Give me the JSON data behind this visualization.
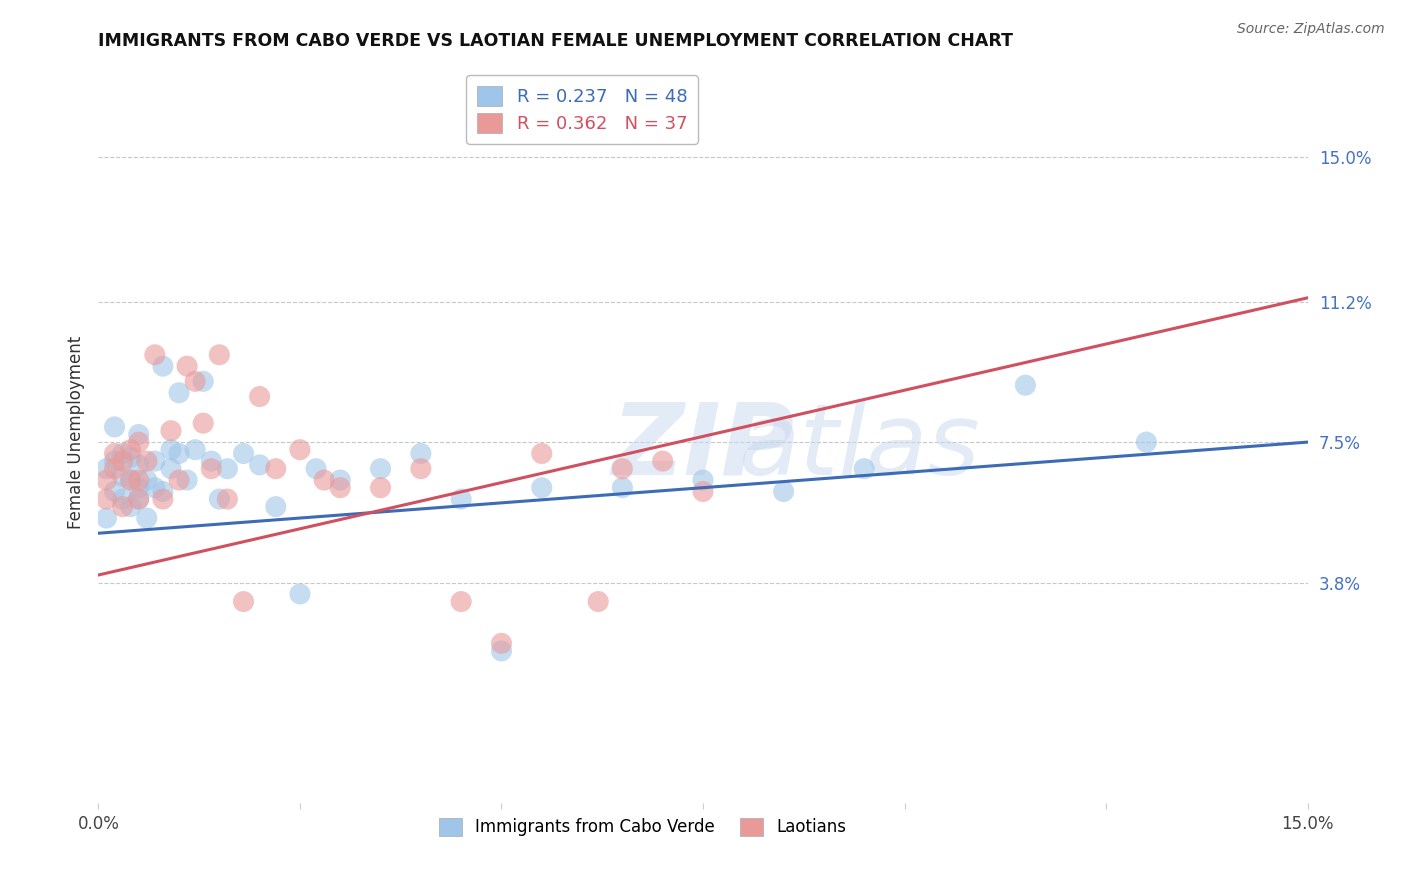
{
  "title": "IMMIGRANTS FROM CABO VERDE VS LAOTIAN FEMALE UNEMPLOYMENT CORRELATION CHART",
  "source": "Source: ZipAtlas.com",
  "ylabel": "Female Unemployment",
  "ytick_labels": [
    "15.0%",
    "11.2%",
    "7.5%",
    "3.8%"
  ],
  "ytick_values": [
    0.15,
    0.112,
    0.075,
    0.038
  ],
  "xlim": [
    0.0,
    0.15
  ],
  "ylim": [
    -0.02,
    0.175
  ],
  "legend1_R": "0.237",
  "legend1_N": "48",
  "legend2_R": "0.362",
  "legend2_N": "37",
  "color_blue": "#9fc5e8",
  "color_pink": "#ea9999",
  "line_blue": "#3d6bb5",
  "line_pink": "#d05060",
  "cabo_verde_x": [
    0.001,
    0.001,
    0.002,
    0.002,
    0.002,
    0.003,
    0.003,
    0.003,
    0.004,
    0.004,
    0.004,
    0.005,
    0.005,
    0.005,
    0.005,
    0.006,
    0.006,
    0.007,
    0.007,
    0.008,
    0.008,
    0.009,
    0.009,
    0.01,
    0.01,
    0.011,
    0.012,
    0.013,
    0.014,
    0.015,
    0.016,
    0.018,
    0.02,
    0.022,
    0.025,
    0.027,
    0.03,
    0.035,
    0.04,
    0.045,
    0.05,
    0.055,
    0.065,
    0.075,
    0.085,
    0.095,
    0.115,
    0.13
  ],
  "cabo_verde_y": [
    0.055,
    0.068,
    0.062,
    0.07,
    0.079,
    0.066,
    0.072,
    0.06,
    0.058,
    0.071,
    0.065,
    0.063,
    0.069,
    0.077,
    0.06,
    0.065,
    0.055,
    0.07,
    0.063,
    0.095,
    0.062,
    0.073,
    0.068,
    0.088,
    0.072,
    0.065,
    0.073,
    0.091,
    0.07,
    0.06,
    0.068,
    0.072,
    0.069,
    0.058,
    0.035,
    0.068,
    0.065,
    0.068,
    0.072,
    0.06,
    0.02,
    0.063,
    0.063,
    0.065,
    0.062,
    0.068,
    0.09,
    0.075
  ],
  "laotian_x": [
    0.001,
    0.001,
    0.002,
    0.002,
    0.003,
    0.003,
    0.004,
    0.004,
    0.005,
    0.005,
    0.005,
    0.006,
    0.007,
    0.008,
    0.009,
    0.01,
    0.011,
    0.012,
    0.013,
    0.014,
    0.015,
    0.016,
    0.018,
    0.02,
    0.022,
    0.025,
    0.028,
    0.03,
    0.035,
    0.04,
    0.045,
    0.05,
    0.055,
    0.062,
    0.065,
    0.07,
    0.075
  ],
  "laotian_y": [
    0.065,
    0.06,
    0.068,
    0.072,
    0.07,
    0.058,
    0.073,
    0.065,
    0.075,
    0.06,
    0.065,
    0.07,
    0.098,
    0.06,
    0.078,
    0.065,
    0.095,
    0.091,
    0.08,
    0.068,
    0.098,
    0.06,
    0.033,
    0.087,
    0.068,
    0.073,
    0.065,
    0.063,
    0.063,
    0.068,
    0.033,
    0.022,
    0.072,
    0.033,
    0.068,
    0.07,
    0.062
  ],
  "cabo_line_x0": 0.0,
  "cabo_line_y0": 0.051,
  "cabo_line_x1": 0.15,
  "cabo_line_y1": 0.075,
  "laotian_line_x0": 0.0,
  "laotian_line_y0": 0.04,
  "laotian_line_x1": 0.15,
  "laotian_line_y1": 0.113
}
